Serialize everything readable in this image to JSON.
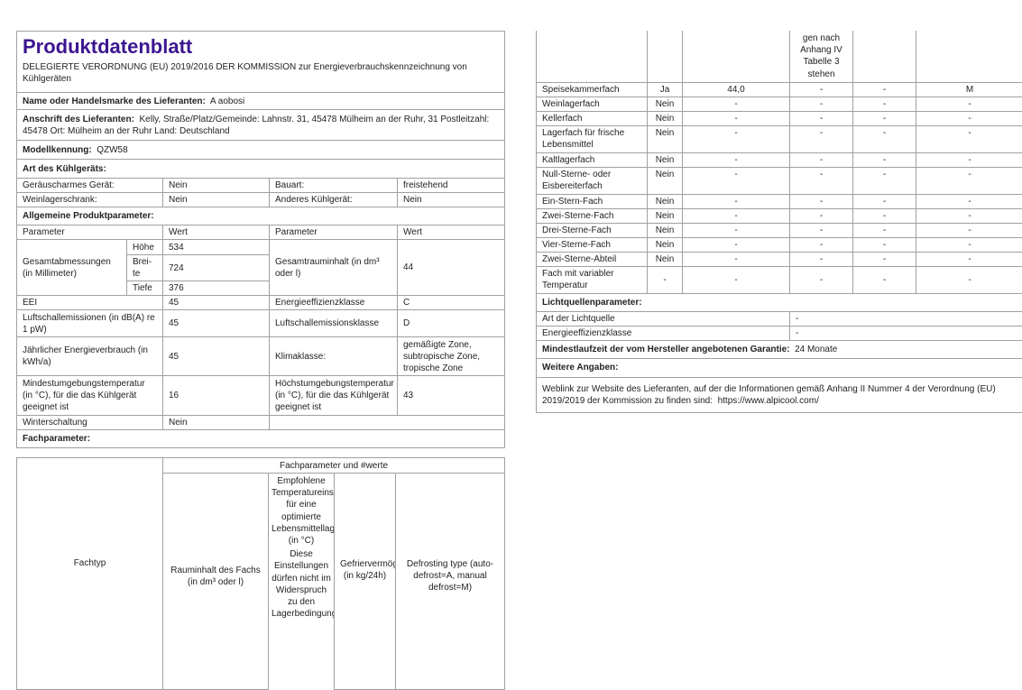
{
  "title": "Produktdatenblatt",
  "regulation": "DELEGIERTE VERORDNUNG (EU) 2019/2016 DER KOMMISSION zur Energieverbrauchskennzeichnung von Kühlgeräten",
  "supplier_name": {
    "label": "Name oder Handelsmarke des Lieferanten:",
    "value": "A aobosi"
  },
  "supplier_address": {
    "label": "Anschrift des Lieferanten:",
    "value": "Kelly, Straße/Platz/Gemeinde: Lahnstr. 31, 45478 Mülheim an der Ruhr, 31 Postleitzahl: 45478 Ort: Mülheim an der Ruhr Land: Deutschland"
  },
  "model": {
    "label": "Modellkennung:",
    "value": "QZW58"
  },
  "appliance_type": {
    "heading": "Art des Kühlgeräts:",
    "rows": [
      {
        "l1": "Geräuscharmes Gerät:",
        "v1": "Nein",
        "l2": "Bauart:",
        "v2": "freistehend"
      },
      {
        "l1": "Weinlagerschrank:",
        "v1": "Nein",
        "l2": "Anderes Kühlgerät:",
        "v2": "Nein"
      }
    ]
  },
  "general": {
    "heading": "Allgemeine Produktparameter:",
    "col_param": "Parameter",
    "col_value": "Wert",
    "dimensions_label": "Gesamtabmessungen (in Millimeter)",
    "height_label": "Höhe",
    "height": "534",
    "width_label": "Brei-te",
    "width": "724",
    "depth_label": "Tiefe",
    "depth": "376",
    "volume_label": "Gesamtrauminhalt (in dm³ oder l)",
    "volume": "44",
    "eei_label": "EEI",
    "eei": "45",
    "energy_class_label": "Energieeffizienzklasse",
    "energy_class": "C",
    "noise_label": "Luftschallemissionen (in dB(A) re 1 pW)",
    "noise": "45",
    "noise_class_label": "Luftschallemissionsklasse",
    "noise_class": "D",
    "annual_energy_label": "Jährlicher Energieverbrauch (in kWh/a)",
    "annual_energy": "45",
    "climate_label": "Klimaklasse:",
    "climate": "gemäßigte Zone, subtropische Zone, tropische Zone",
    "min_temp_label": "Mindestumgebungstemperatur (in °C), für die das Kühlgerät geeignet ist",
    "min_temp": "16",
    "max_temp_label": "Höchstumgebungstemperatur (in °C), für die das Kühlgerät geeignet ist",
    "max_temp": "43",
    "winter_label": "Winterschaltung",
    "winter": "Nein"
  },
  "compartments": {
    "heading": "Fachparameter:",
    "group_header": "Fachparameter und #werte",
    "col_type": "Fachtyp",
    "col_volume": "Rauminhalt des Fachs (in dm³ oder l)",
    "col_temp": "Empfohlene Temperatureinstellung für eine optimierte Lebensmittellagerung (in °C)",
    "col_temp_note": "Diese Einstellungen dürfen nicht im Widerspruch zu den Lagerbedingungen",
    "col_temp_note_cont": "gen nach Anhang IV Tabelle 3 stehen",
    "col_freeze": "Gefriervermögen (in kg/24h)",
    "col_defrost": "Defrosting type (auto-defrost=A, manual defrost=M)",
    "rows": [
      [
        "Speisekammerfach",
        "Ja",
        "44,0",
        "-",
        "-",
        "M"
      ],
      [
        "Weinlagerfach",
        "Nein",
        "-",
        "-",
        "-",
        "-"
      ],
      [
        "Kellerfach",
        "Nein",
        "-",
        "-",
        "-",
        "-"
      ],
      [
        "Lagerfach für frische Lebensmittel",
        "Nein",
        "-",
        "-",
        "-",
        "-"
      ],
      [
        "Kaltlagerfach",
        "Nein",
        "-",
        "-",
        "-",
        "-"
      ],
      [
        "Null-Sterne- oder Eisbereiterfach",
        "Nein",
        "-",
        "-",
        "-",
        "-"
      ],
      [
        "Ein-Stern-Fach",
        "Nein",
        "-",
        "-",
        "-",
        "-"
      ],
      [
        "Zwei-Sterne-Fach",
        "Nein",
        "-",
        "-",
        "-",
        "-"
      ],
      [
        "Drei-Sterne-Fach",
        "Nein",
        "-",
        "-",
        "-",
        "-"
      ],
      [
        "Vier-Sterne-Fach",
        "Nein",
        "-",
        "-",
        "-",
        "-"
      ],
      [
        "Zwei-Sterne-Abteil",
        "Nein",
        "-",
        "-",
        "-",
        "-"
      ],
      [
        "Fach mit variabler Temperatur",
        "-",
        "-",
        "-",
        "-",
        "-"
      ]
    ]
  },
  "light": {
    "heading": "Lichtquellenparameter:",
    "type_label": "Art der Lichtquelle",
    "type": "-",
    "class_label": "Energieeffizienzklasse",
    "class": "-"
  },
  "warranty": {
    "label": "Mindestlaufzeit der vom Hersteller angebotenen Garantie:",
    "value": "24 Monate"
  },
  "further": {
    "heading": "Weitere Angaben:",
    "text": "Weblink zur Website des Lieferanten, auf der die Informationen gemäß Anhang II Nummer 4 der Verordnung (EU) 2019/2019 der Kommission zu finden sind:",
    "url": "https://www.alpicool.com/"
  }
}
